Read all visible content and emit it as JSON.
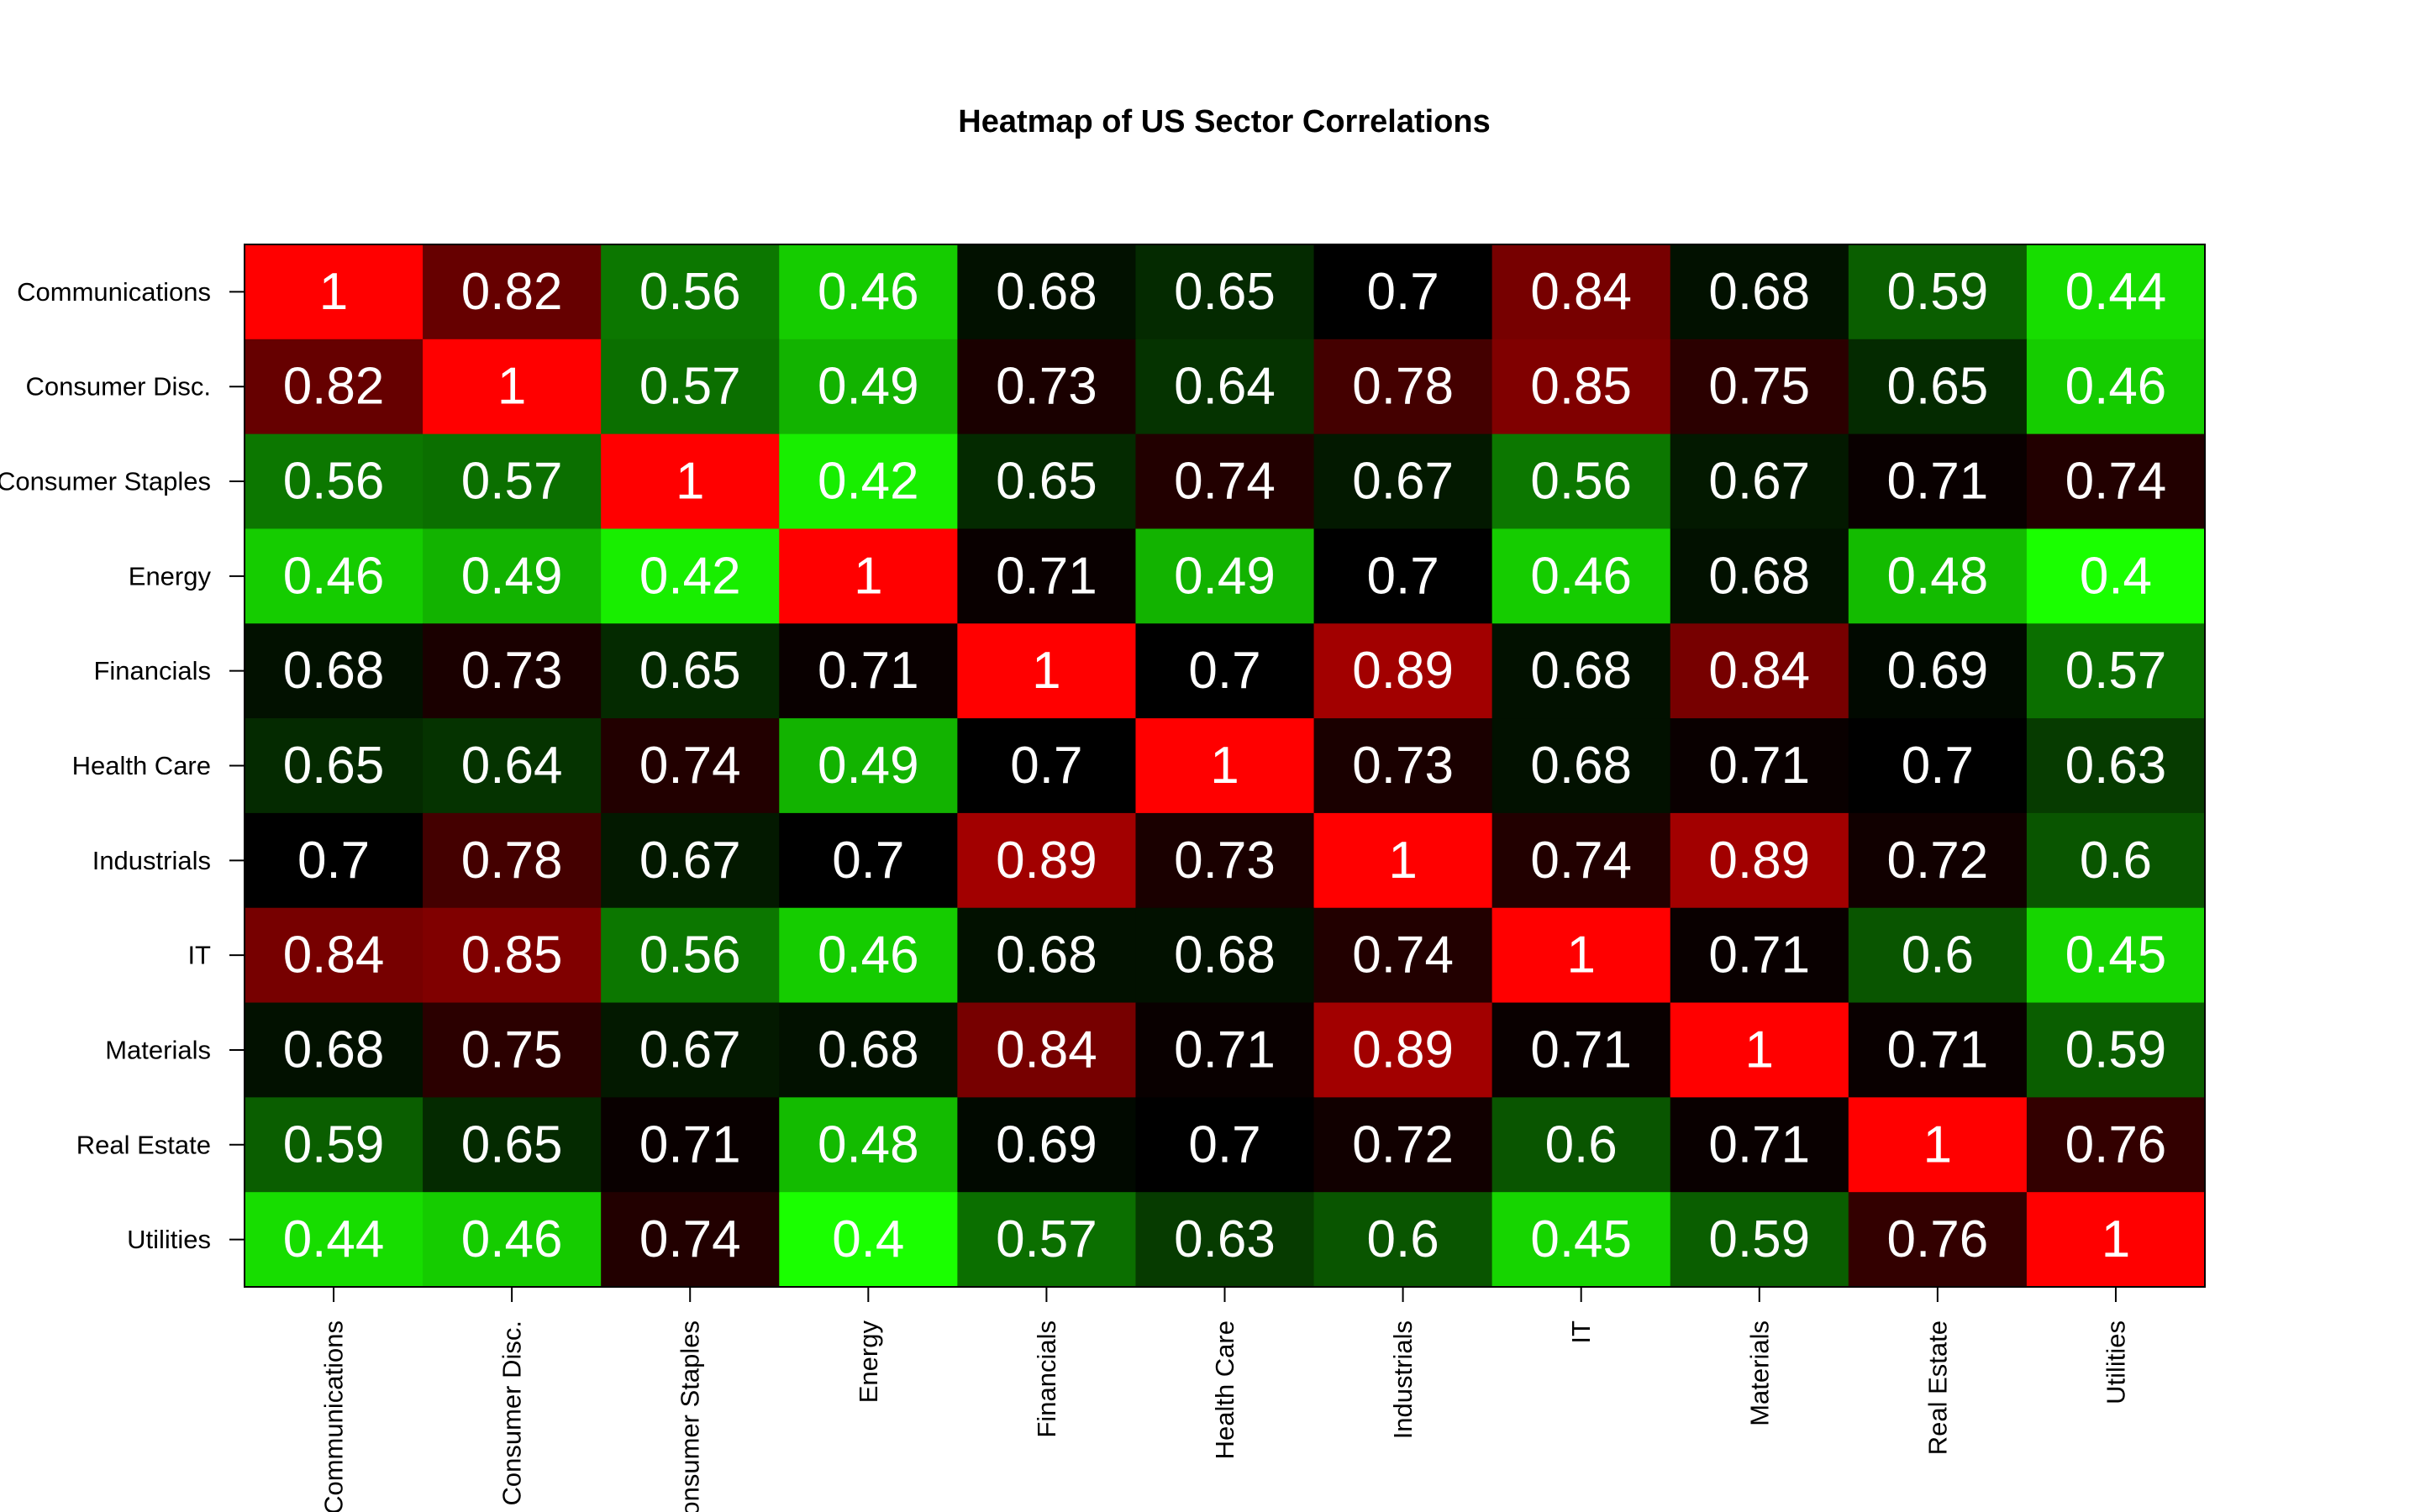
{
  "chart_data": {
    "type": "heatmap",
    "title": "Heatmap of US Sector Correlations",
    "xlabel": "",
    "ylabel": "",
    "row_labels": [
      "Communications",
      "Consumer Disc.",
      "Consumer Staples",
      "Energy",
      "Financials",
      "Health Care",
      "Industrials",
      "IT",
      "Materials",
      "Real Estate",
      "Utilities"
    ],
    "col_labels": [
      "Communications",
      "Consumer Disc.",
      "Consumer Staples",
      "Energy",
      "Financials",
      "Health Care",
      "Industrials",
      "IT",
      "Materials",
      "Real Estate",
      "Utilities"
    ],
    "values": [
      [
        1,
        0.82,
        0.56,
        0.46,
        0.68,
        0.65,
        0.7,
        0.84,
        0.68,
        0.59,
        0.44
      ],
      [
        0.82,
        1,
        0.57,
        0.49,
        0.73,
        0.64,
        0.78,
        0.85,
        0.75,
        0.65,
        0.46
      ],
      [
        0.56,
        0.57,
        1,
        0.42,
        0.65,
        0.74,
        0.67,
        0.56,
        0.67,
        0.71,
        0.74
      ],
      [
        0.46,
        0.49,
        0.42,
        1,
        0.71,
        0.49,
        0.7,
        0.46,
        0.68,
        0.48,
        0.4
      ],
      [
        0.68,
        0.73,
        0.65,
        0.71,
        1,
        0.7,
        0.89,
        0.68,
        0.84,
        0.69,
        0.57
      ],
      [
        0.65,
        0.64,
        0.74,
        0.49,
        0.7,
        1,
        0.73,
        0.68,
        0.71,
        0.7,
        0.63
      ],
      [
        0.7,
        0.78,
        0.67,
        0.7,
        0.89,
        0.73,
        1,
        0.74,
        0.89,
        0.72,
        0.6
      ],
      [
        0.84,
        0.85,
        0.56,
        0.46,
        0.68,
        0.68,
        0.74,
        1,
        0.71,
        0.6,
        0.45
      ],
      [
        0.68,
        0.75,
        0.67,
        0.68,
        0.84,
        0.71,
        0.89,
        0.71,
        1,
        0.71,
        0.59
      ],
      [
        0.59,
        0.65,
        0.71,
        0.48,
        0.69,
        0.7,
        0.72,
        0.6,
        0.71,
        1,
        0.76
      ],
      [
        0.44,
        0.46,
        0.74,
        0.4,
        0.57,
        0.63,
        0.6,
        0.45,
        0.59,
        0.76,
        1
      ]
    ],
    "color_scale": {
      "low": "#1aff00",
      "mid": "#000000",
      "high": "#ff0000",
      "mid_value": 0.7
    },
    "cell_text_color": "#ffffff",
    "grid": false,
    "legend": "none"
  }
}
